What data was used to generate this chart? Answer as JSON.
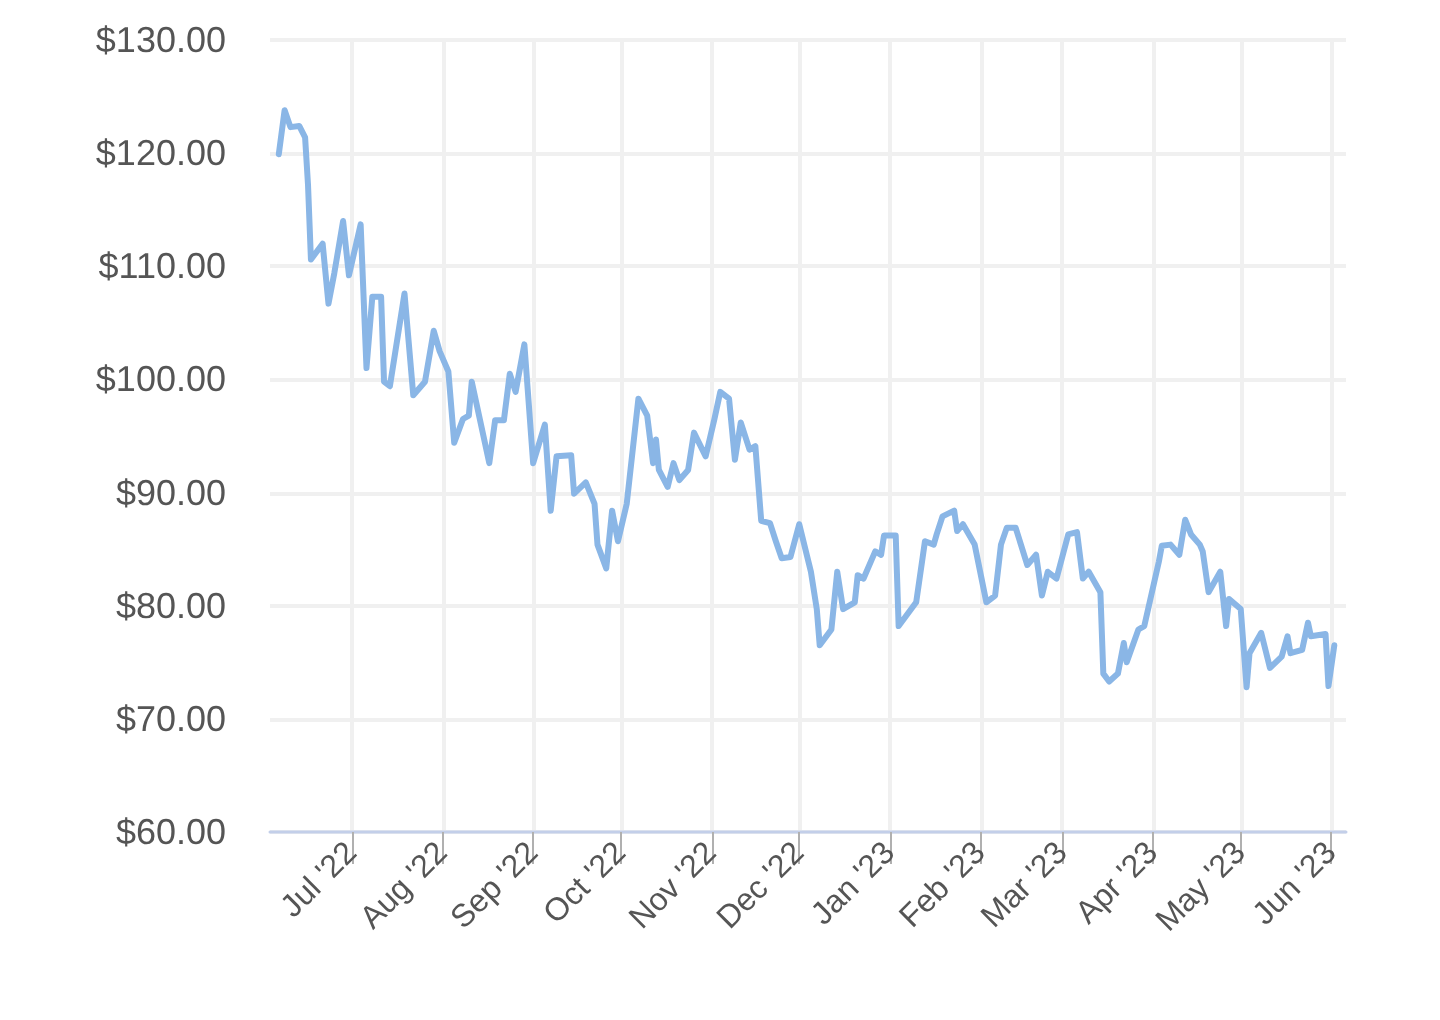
{
  "chart_data": {
    "type": "line",
    "x": [
      "2022-06-06",
      "2022-06-08",
      "2022-06-10",
      "2022-06-13",
      "2022-06-15",
      "2022-06-16",
      "2022-06-17",
      "2022-06-21",
      "2022-06-23",
      "2022-06-25",
      "2022-06-28",
      "2022-06-30",
      "2022-07-04",
      "2022-07-06",
      "2022-07-08",
      "2022-07-11",
      "2022-07-12",
      "2022-07-14",
      "2022-07-19",
      "2022-07-22",
      "2022-07-26",
      "2022-07-29",
      "2022-07-31",
      "2022-08-03",
      "2022-08-05",
      "2022-08-08",
      "2022-08-10",
      "2022-08-11",
      "2022-08-17",
      "2022-08-19",
      "2022-08-22",
      "2022-08-24",
      "2022-08-26",
      "2022-08-29",
      "2022-09-01",
      "2022-09-05",
      "2022-09-07",
      "2022-09-09",
      "2022-09-14",
      "2022-09-15",
      "2022-09-19",
      "2022-09-22",
      "2022-09-23",
      "2022-09-26",
      "2022-09-28",
      "2022-09-30",
      "2022-10-03",
      "2022-10-07",
      "2022-10-10",
      "2022-10-12",
      "2022-10-13",
      "2022-10-14",
      "2022-10-17",
      "2022-10-19",
      "2022-10-21",
      "2022-10-24",
      "2022-10-26",
      "2022-10-30",
      "2022-11-02",
      "2022-11-04",
      "2022-11-07",
      "2022-11-09",
      "2022-11-11",
      "2022-11-14",
      "2022-11-16",
      "2022-11-18",
      "2022-11-21",
      "2022-11-23",
      "2022-11-25",
      "2022-11-28",
      "2022-12-01",
      "2022-12-05",
      "2022-12-07",
      "2022-12-08",
      "2022-12-12",
      "2022-12-14",
      "2022-12-16",
      "2022-12-20",
      "2022-12-21",
      "2022-12-23",
      "2022-12-27",
      "2022-12-29",
      "2022-12-30",
      "2023-01-03",
      "2023-01-04",
      "2023-01-10",
      "2023-01-13",
      "2023-01-16",
      "2023-01-17",
      "2023-01-19",
      "2023-01-23",
      "2023-01-24",
      "2023-01-26",
      "2023-01-30",
      "2023-02-03",
      "2023-02-06",
      "2023-02-08",
      "2023-02-10",
      "2023-02-13",
      "2023-02-17",
      "2023-02-20",
      "2023-02-22",
      "2023-02-24",
      "2023-02-27",
      "2023-03-03",
      "2023-03-06",
      "2023-03-08",
      "2023-03-10",
      "2023-03-14",
      "2023-03-15",
      "2023-03-17",
      "2023-03-20",
      "2023-03-22",
      "2023-03-23",
      "2023-03-27",
      "2023-03-29",
      "2023-04-03",
      "2023-04-04",
      "2023-04-07",
      "2023-04-10",
      "2023-04-12",
      "2023-04-14",
      "2023-04-17",
      "2023-04-18",
      "2023-04-20",
      "2023-04-24",
      "2023-04-26",
      "2023-04-27",
      "2023-05-01",
      "2023-05-03",
      "2023-05-04",
      "2023-05-08",
      "2023-05-11",
      "2023-05-15",
      "2023-05-17",
      "2023-05-18",
      "2023-05-22",
      "2023-05-24",
      "2023-05-25",
      "2023-05-30",
      "2023-05-31",
      "2023-06-02"
    ],
    "values": [
      119.9,
      123.8,
      122.3,
      122.4,
      121.4,
      117.2,
      110.6,
      112.0,
      106.7,
      109.4,
      114.0,
      109.2,
      113.7,
      101.0,
      107.3,
      107.3,
      99.8,
      99.4,
      107.6,
      98.6,
      99.8,
      104.3,
      102.5,
      100.7,
      94.4,
      96.5,
      96.8,
      99.8,
      92.6,
      96.4,
      96.4,
      100.5,
      98.9,
      103.1,
      92.6,
      96.0,
      88.4,
      93.2,
      93.3,
      89.9,
      90.9,
      89.0,
      85.4,
      83.3,
      88.4,
      85.7,
      89.0,
      98.3,
      96.8,
      92.6,
      94.7,
      92.0,
      90.5,
      92.6,
      91.1,
      92.0,
      95.3,
      93.2,
      96.5,
      98.9,
      98.3,
      92.9,
      96.2,
      93.8,
      94.1,
      87.5,
      87.3,
      85.7,
      84.2,
      84.3,
      87.2,
      83.0,
      79.7,
      76.5,
      77.9,
      83.0,
      79.7,
      80.3,
      82.7,
      82.4,
      84.8,
      84.5,
      86.2,
      86.2,
      78.2,
      80.3,
      85.7,
      85.4,
      86.3,
      87.9,
      88.4,
      86.6,
      87.2,
      85.4,
      80.3,
      80.9,
      85.4,
      86.9,
      86.9,
      83.6,
      84.5,
      80.9,
      83.0,
      82.4,
      86.3,
      86.5,
      82.4,
      83.0,
      81.2,
      74.0,
      73.3,
      74.0,
      76.7,
      75.0,
      77.9,
      78.2,
      83.9,
      85.3,
      85.4,
      84.5,
      87.6,
      86.3,
      85.4,
      84.8,
      81.2,
      83.0,
      78.2,
      80.6,
      79.7,
      72.8,
      75.8,
      77.6,
      74.5,
      75.5,
      77.3,
      75.8,
      76.1,
      78.5,
      77.3,
      77.5,
      72.9,
      76.5
    ],
    "color": "#8ab6e6",
    "marker": "none",
    "line_style": "solid",
    "grid": true,
    "xlim": [
      "2022-06-03",
      "2023-06-06"
    ],
    "xticks": [
      {
        "value": "2022-07-01",
        "label": "Jul '22"
      },
      {
        "value": "2022-08-01",
        "label": "Aug '22"
      },
      {
        "value": "2022-09-01",
        "label": "Sep '22"
      },
      {
        "value": "2022-10-01",
        "label": "Oct '22"
      },
      {
        "value": "2022-11-01",
        "label": "Nov '22"
      },
      {
        "value": "2022-12-01",
        "label": "Dec '22"
      },
      {
        "value": "2023-01-01",
        "label": "Jan '23"
      },
      {
        "value": "2023-02-01",
        "label": "Feb '23"
      },
      {
        "value": "2023-03-01",
        "label": "Mar '23"
      },
      {
        "value": "2023-04-01",
        "label": "Apr '23"
      },
      {
        "value": "2023-05-01",
        "label": "May '23"
      },
      {
        "value": "2023-06-01",
        "label": "Jun '23"
      }
    ],
    "ylim": [
      60,
      130
    ],
    "yticks": [
      {
        "value": 60,
        "label": "$60.00"
      },
      {
        "value": 70,
        "label": "$70.00"
      },
      {
        "value": 80,
        "label": "$80.00"
      },
      {
        "value": 90,
        "label": "$90.00"
      },
      {
        "value": 100,
        "label": "$100.00"
      },
      {
        "value": 110,
        "label": "$110.00"
      },
      {
        "value": 120,
        "label": "$120.00"
      },
      {
        "value": 130,
        "label": "$130.00"
      }
    ]
  }
}
